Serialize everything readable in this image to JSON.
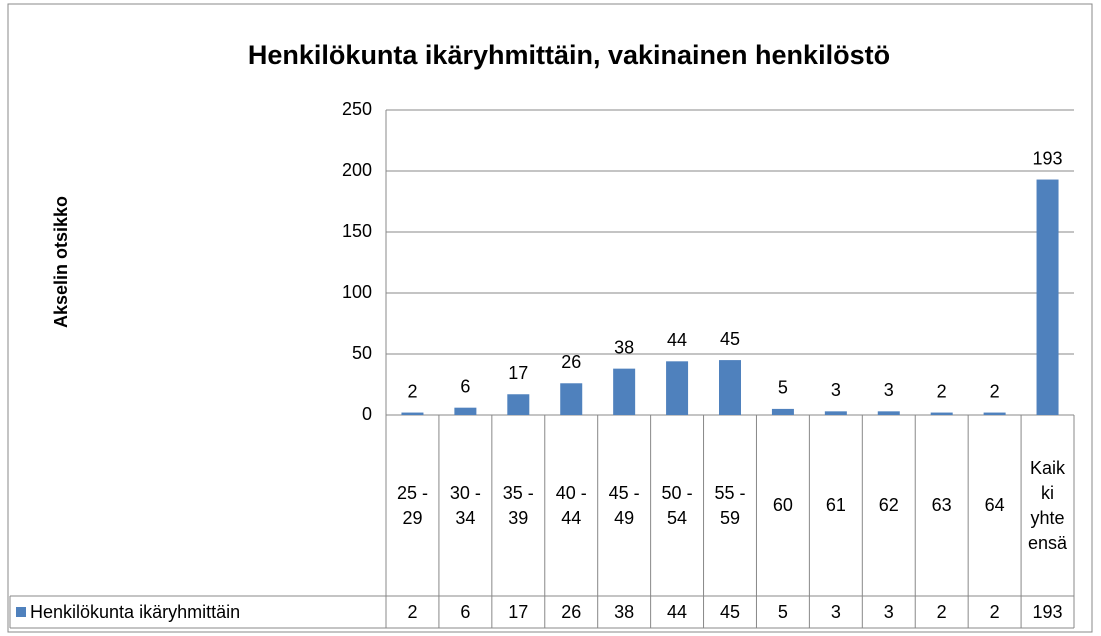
{
  "chart_data": {
    "type": "bar",
    "title": "Henkilökunta ikäryhmittäin, vakinainen henkilöstö",
    "y_axis_label": "Akselin otsikko",
    "categories": [
      "25 - 29",
      "30 - 34",
      "35 - 39",
      "40 - 44",
      "45 - 49",
      "50 - 54",
      "55 - 59",
      "60",
      "61",
      "62",
      "63",
      "64",
      "Kaikki yhteensä"
    ],
    "series": [
      {
        "name": "Henkilökunta ikäryhmittäin",
        "color": "#4f81bd",
        "values": [
          2,
          6,
          17,
          26,
          38,
          44,
          45,
          5,
          3,
          3,
          2,
          2,
          193
        ]
      }
    ],
    "ylim": [
      0,
      250
    ],
    "yticks": [
      0,
      50,
      100,
      150,
      200,
      250
    ],
    "grid": true,
    "data_table": true
  }
}
